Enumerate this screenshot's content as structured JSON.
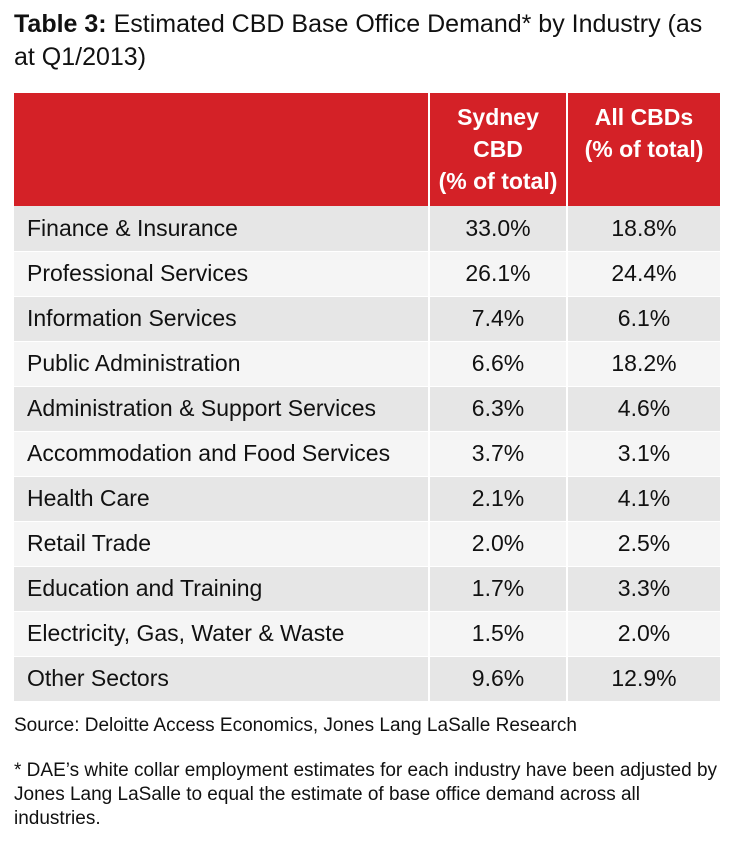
{
  "title": {
    "label": "Table 3:",
    "text": "Estimated CBD Base Office Demand* by Industry (as at Q1/2013)"
  },
  "table": {
    "headers": {
      "industry": "",
      "sydney_line1": "Sydney",
      "sydney_line2": "CBD",
      "sydney_line3": "(% of total)",
      "all_line1": "All CBDs",
      "all_line2": "(% of total)"
    },
    "rows": [
      {
        "industry": "Finance & Insurance",
        "sydney": "33.0%",
        "all": "18.8%"
      },
      {
        "industry": "Professional Services",
        "sydney": "26.1%",
        "all": "24.4%"
      },
      {
        "industry": "Information Services",
        "sydney": "7.4%",
        "all": "6.1%"
      },
      {
        "industry": "Public Administration",
        "sydney": "6.6%",
        "all": "18.2%"
      },
      {
        "industry": "Administration & Support Services",
        "sydney": "6.3%",
        "all": "4.6%"
      },
      {
        "industry": "Accommodation and Food Services",
        "sydney": "3.7%",
        "all": "3.1%"
      },
      {
        "industry": "Health Care",
        "sydney": "2.1%",
        "all": "4.1%"
      },
      {
        "industry": "Retail Trade",
        "sydney": "2.0%",
        "all": "2.5%"
      },
      {
        "industry": "Education and Training",
        "sydney": "1.7%",
        "all": "3.3%"
      },
      {
        "industry": "Electricity, Gas, Water & Waste",
        "sydney": "1.5%",
        "all": "2.0%"
      },
      {
        "industry": "Other Sectors",
        "sydney": "9.6%",
        "all": "12.9%"
      }
    ]
  },
  "source": "Source: Deloitte Access Economics, Jones Lang LaSalle Research",
  "footnote": "* DAE’s white collar employment estimates for each industry have been adjusted by Jones Lang LaSalle to equal the estimate of base office demand across all industries.",
  "colors": {
    "header_bg": "#d42127",
    "row_odd": "#e6e6e6",
    "row_even": "#f5f5f5"
  }
}
